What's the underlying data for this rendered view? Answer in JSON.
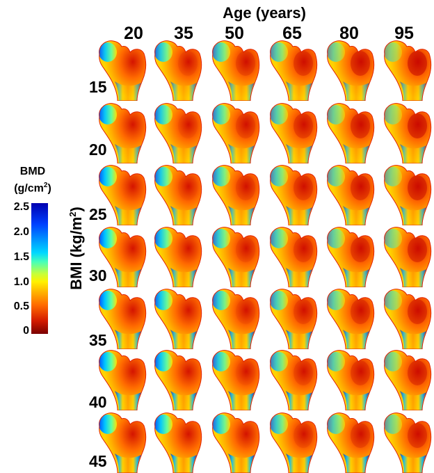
{
  "figure": {
    "column_axis_title": "Age (years)",
    "row_axis_title_main": "BMI (kg/m",
    "row_axis_title_sup": "2",
    "row_axis_title_end": ")",
    "ages": [
      "20",
      "35",
      "50",
      "65",
      "80",
      "95"
    ],
    "bmis": [
      "15",
      "20",
      "25",
      "30",
      "35",
      "40",
      "45"
    ]
  },
  "colorbar": {
    "title_line1": "BMD",
    "title_line2": "(g/cm",
    "title_sup": "2",
    "title_end": ")",
    "ticks": [
      "2.5",
      "2.0",
      "1.5",
      "1.0",
      "0.5",
      "0"
    ]
  },
  "colors": {
    "low": "#8b0000",
    "mid_low": "#ff5a00",
    "mid": "#ffd400",
    "mid_high": "#2fe6c8",
    "high": "#0000b5"
  }
}
